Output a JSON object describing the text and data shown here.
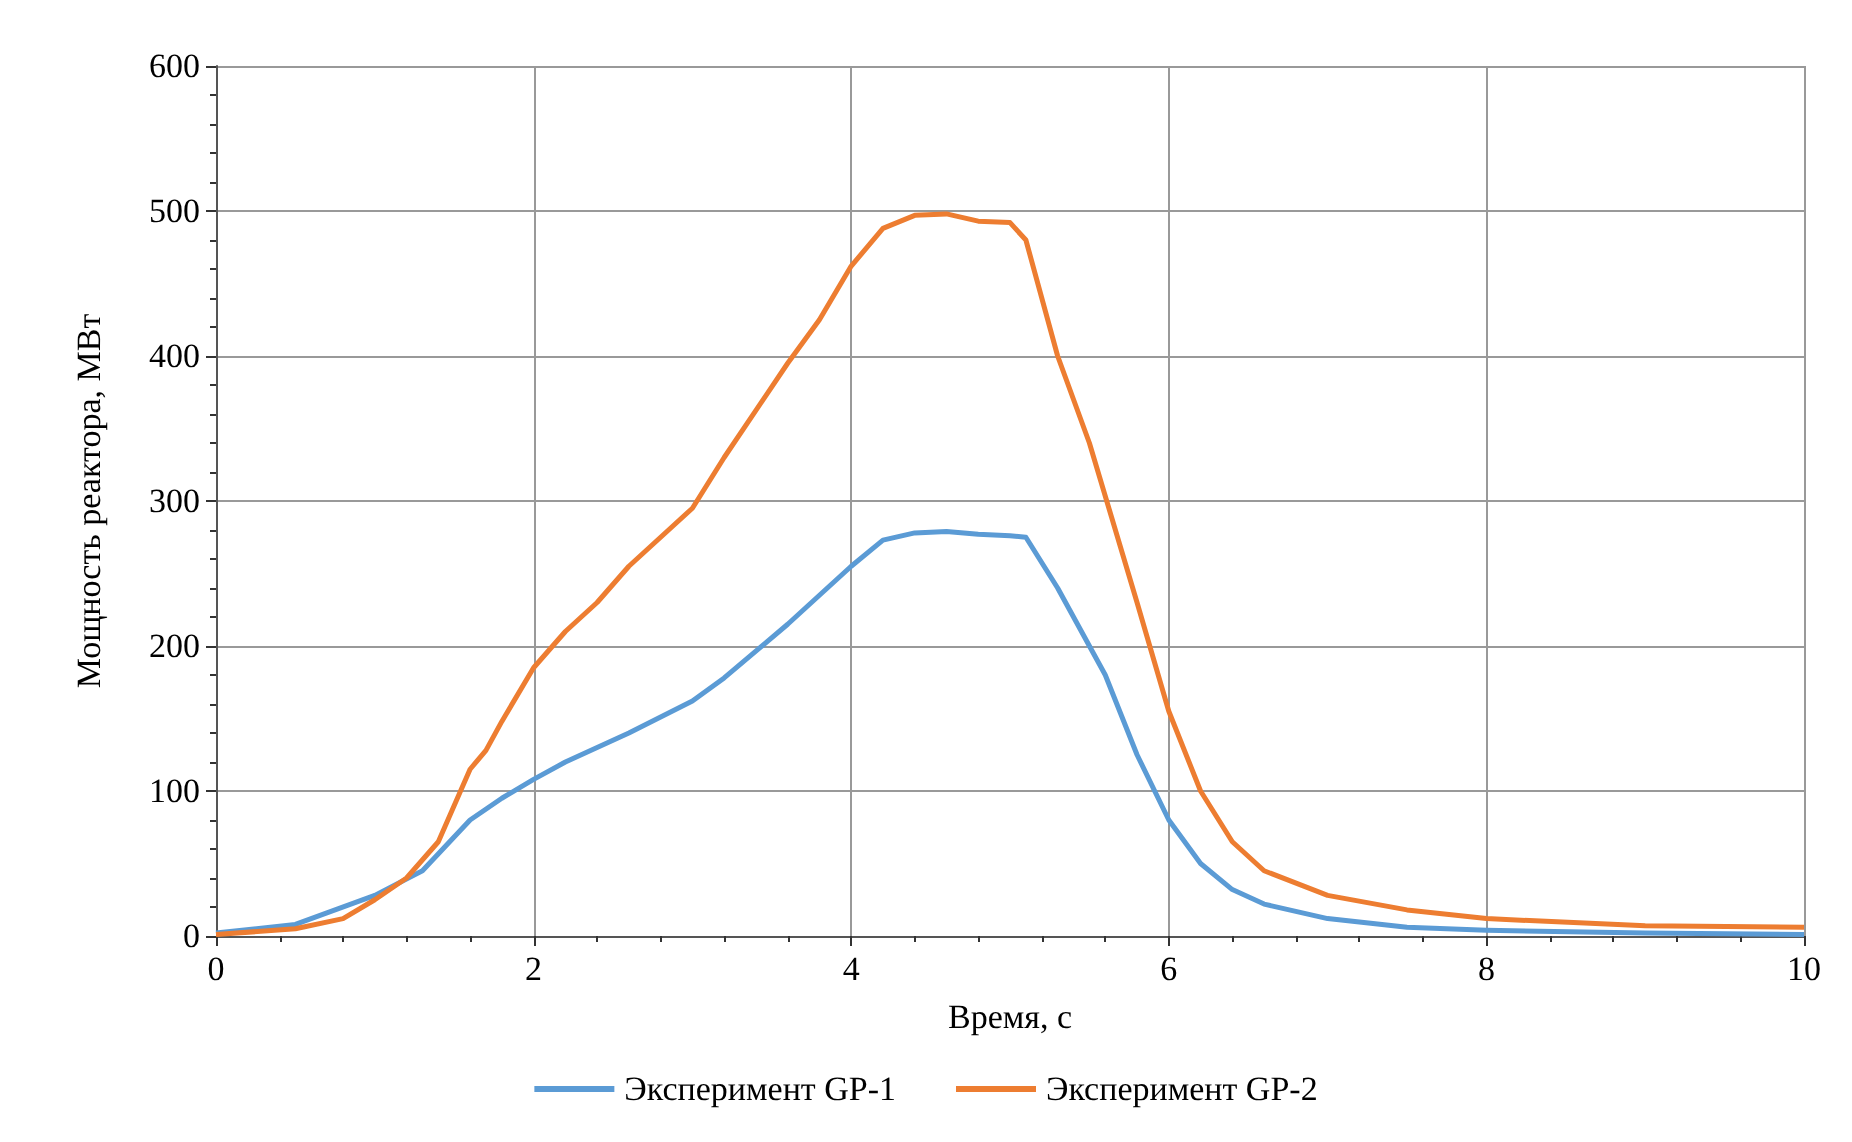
{
  "chart_data": {
    "type": "line",
    "xlabel": "Время, с",
    "ylabel": "Мощность реактора, МВт",
    "xlim": [
      0,
      10
    ],
    "xticks": [
      0,
      2,
      4,
      6,
      8,
      10
    ],
    "ylim": [
      0,
      600
    ],
    "yticks": [
      0,
      100,
      200,
      300,
      400,
      500,
      600
    ],
    "grid": true,
    "legend": "bottom",
    "marker": "none",
    "line_style": "solid",
    "series": [
      {
        "name": "Эксперимент GP-1",
        "color": "#5b9bd5",
        "x": [
          0,
          0.5,
          1,
          1.3,
          1.6,
          1.8,
          2,
          2.2,
          2.6,
          3,
          3.2,
          3.6,
          4,
          4.2,
          4.4,
          4.6,
          4.8,
          5,
          5.1,
          5.3,
          5.6,
          5.8,
          6,
          6.2,
          6.4,
          6.6,
          7,
          7.5,
          8,
          9,
          10
        ],
        "values": [
          2,
          8,
          28,
          45,
          80,
          95,
          108,
          120,
          140,
          162,
          178,
          215,
          255,
          273,
          278,
          279,
          277,
          276,
          275,
          240,
          180,
          125,
          80,
          50,
          32,
          22,
          12,
          6,
          4,
          2,
          1
        ]
      },
      {
        "name": "Эксперимент GP-2",
        "color": "#ed7d31",
        "x": [
          0,
          0.5,
          0.8,
          1,
          1.2,
          1.4,
          1.6,
          1.7,
          1.8,
          2,
          2.2,
          2.4,
          2.6,
          3,
          3.2,
          3.6,
          3.8,
          4,
          4.2,
          4.4,
          4.6,
          4.8,
          5,
          5.1,
          5.3,
          5.5,
          5.8,
          6,
          6.2,
          6.4,
          6.6,
          7,
          7.5,
          8,
          9,
          10
        ],
        "values": [
          1,
          5,
          12,
          25,
          40,
          65,
          115,
          128,
          148,
          185,
          210,
          230,
          255,
          295,
          330,
          395,
          425,
          462,
          488,
          497,
          498,
          493,
          492,
          480,
          400,
          340,
          230,
          155,
          100,
          65,
          45,
          28,
          18,
          12,
          7,
          6
        ]
      }
    ]
  }
}
